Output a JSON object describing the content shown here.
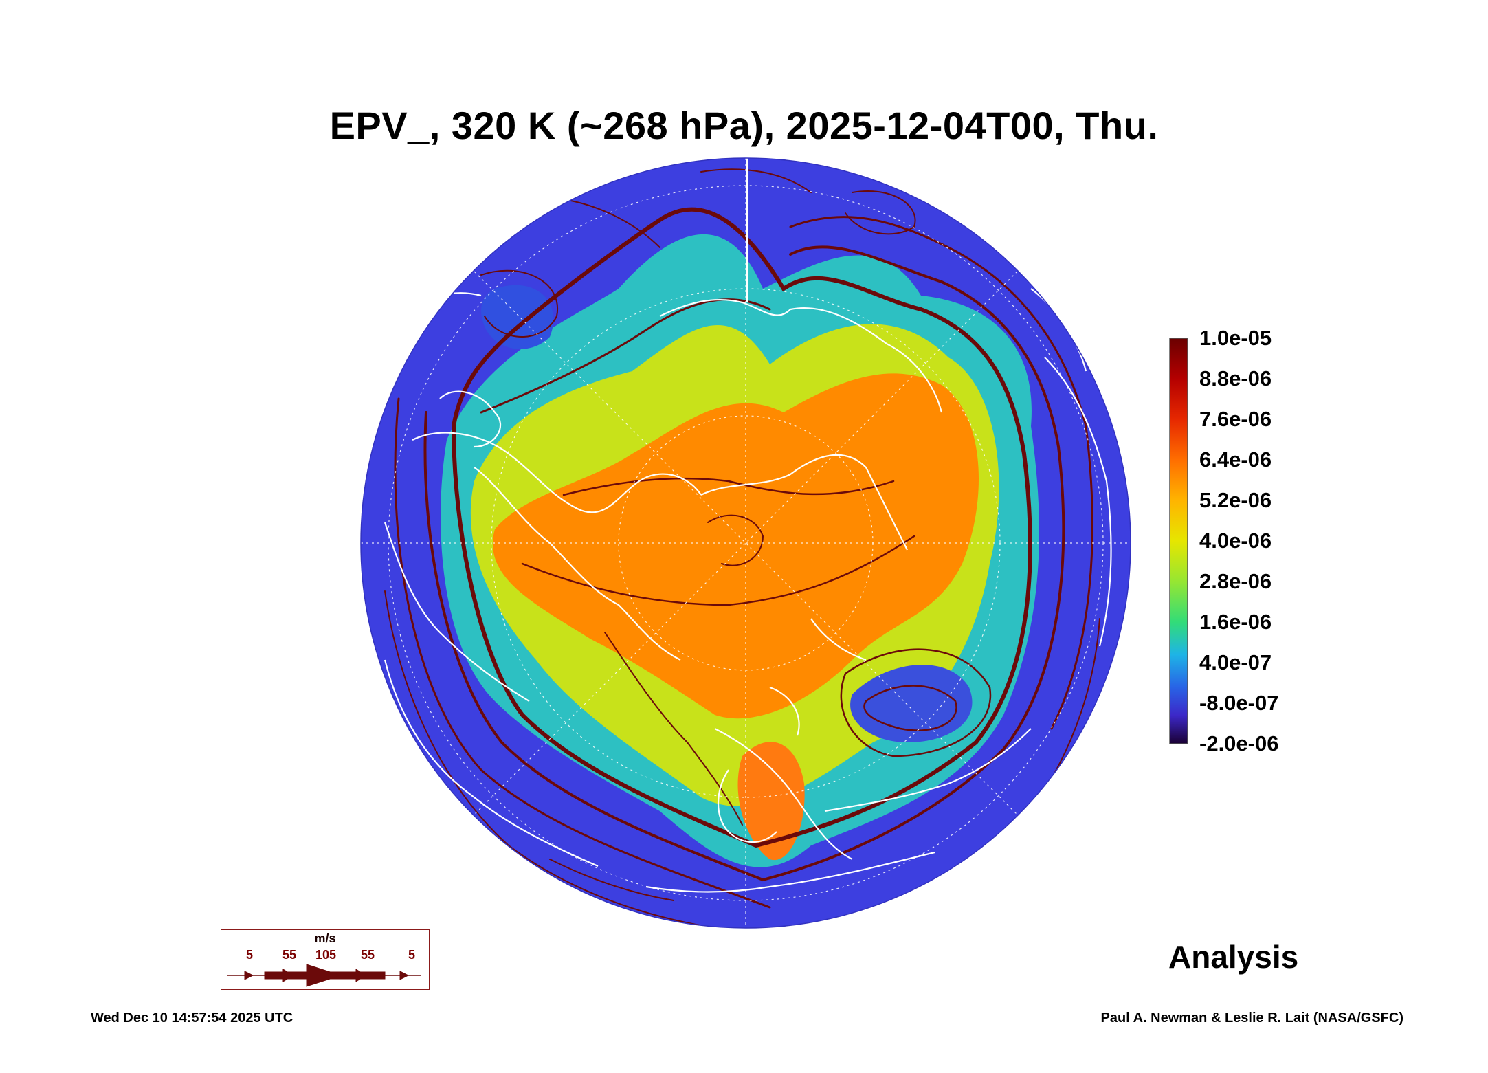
{
  "title": "EPV_, 320 K (~268 hPa), 2025-12-04T00, Thu.",
  "colorbar": {
    "labels": [
      "1.0e-05",
      "8.8e-06",
      "7.6e-06",
      "6.4e-06",
      "5.2e-06",
      "4.0e-06",
      "2.8e-06",
      "1.6e-06",
      "4.0e-07",
      "-8.0e-07",
      "-2.0e-06"
    ],
    "colors": [
      "#6b0000",
      "#b40000",
      "#e62800",
      "#ff6e00",
      "#ffb400",
      "#e6e600",
      "#96e632",
      "#32dc78",
      "#1eb4e6",
      "#2864e6",
      "#3c28c8",
      "#3c0a6e",
      "#1a0033"
    ]
  },
  "wind_legend": {
    "unit": "m/s",
    "speeds": [
      "5",
      "55",
      "105",
      "55",
      "5"
    ]
  },
  "analysis_label": "Analysis",
  "footer": {
    "timestamp": "Wed Dec 10 14:57:54 2025 UTC",
    "credit": "Paul A. Newman & Leslie R. Lait (NASA/GSFC)"
  },
  "map_colors": {
    "ocean_low": "#3f3fe6",
    "high_pv": "#ff8a00",
    "streamline": "#6b0a0a",
    "coast": "#ffffff"
  }
}
